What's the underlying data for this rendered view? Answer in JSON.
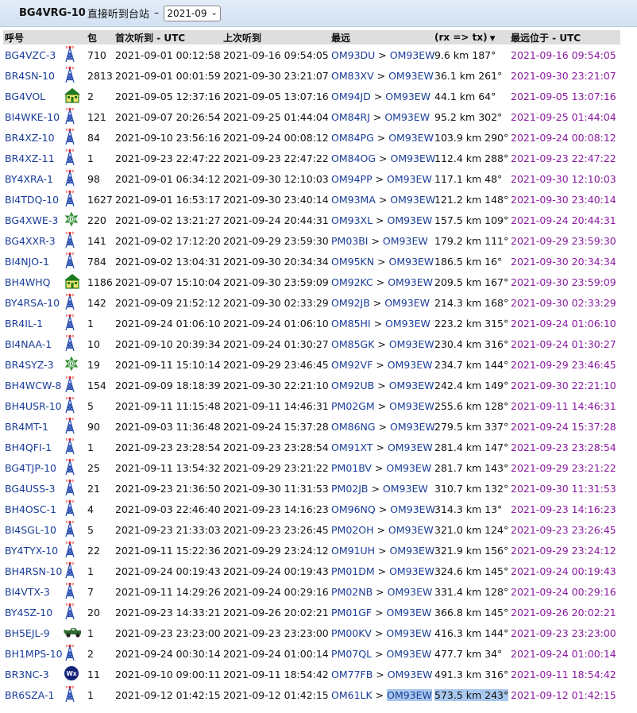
{
  "header": {
    "station": "BG4VRG-10",
    "subtitle": "直接听到台站",
    "separator": "–",
    "period_value": "2021-09"
  },
  "columns": {
    "callsign": "呼号",
    "packets": "包",
    "first_heard": "首次听到 - UTC",
    "last_heard": "上次听到",
    "farthest": "最远",
    "rxtx": "(rx => tx)",
    "farthest_at": "最远位于 - UTC"
  },
  "rows": [
    {
      "call": "BG4VZC-3",
      "icon": "tower-icon",
      "packets": "710",
      "first": "2021-09-01 00:12:58",
      "last": "2021-09-16 09:54:05",
      "from": "OM93DU",
      "to": "OM93EW",
      "dist": "9.6 km 187°",
      "at": "2021-09-16 09:54:05"
    },
    {
      "call": "BR4SN-10",
      "icon": "tower-icon",
      "packets": "2813",
      "first": "2021-09-01 00:01:59",
      "last": "2021-09-30 23:21:07",
      "from": "OM83XV",
      "to": "OM93EW",
      "dist": "36.1 km 261°",
      "at": "2021-09-30 23:21:07"
    },
    {
      "call": "BG4VOL",
      "icon": "house-icon",
      "packets": "2",
      "first": "2021-09-05 12:37:16",
      "last": "2021-09-05 13:07:16",
      "from": "OM94JD",
      "to": "OM93EW",
      "dist": "44.1 km 64°",
      "at": "2021-09-05 13:07:16"
    },
    {
      "call": "BI4WKE-10",
      "icon": "tower-icon",
      "packets": "121",
      "first": "2021-09-07 20:26:54",
      "last": "2021-09-25 01:44:04",
      "from": "OM84RJ",
      "to": "OM93EW",
      "dist": "95.2 km 302°",
      "at": "2021-09-25 01:44:04"
    },
    {
      "call": "BR4XZ-10",
      "icon": "tower-icon",
      "packets": "84",
      "first": "2021-09-10 23:56:16",
      "last": "2021-09-24 00:08:12",
      "from": "OM84PG",
      "to": "OM93EW",
      "dist": "103.9 km 290°",
      "at": "2021-09-24 00:08:12"
    },
    {
      "call": "BR4XZ-11",
      "icon": "tower-icon",
      "packets": "1",
      "first": "2021-09-23 22:47:22",
      "last": "2021-09-23 22:47:22",
      "from": "OM84OG",
      "to": "OM93EW",
      "dist": "112.4 km 288°",
      "at": "2021-09-23 22:47:22"
    },
    {
      "call": "BY4XRA-1",
      "icon": "tower-icon",
      "packets": "98",
      "first": "2021-09-01 06:34:12",
      "last": "2021-09-30 12:10:03",
      "from": "OM94PP",
      "to": "OM93EW",
      "dist": "117.1 km 48°",
      "at": "2021-09-30 12:10:03"
    },
    {
      "call": "BI4TDQ-10",
      "icon": "tower-icon",
      "packets": "1627",
      "first": "2021-09-01 16:53:17",
      "last": "2021-09-30 23:40:14",
      "from": "OM93MA",
      "to": "OM93EW",
      "dist": "121.2 km 148°",
      "at": "2021-09-30 23:40:14"
    },
    {
      "call": "BG4XWE-3",
      "icon": "digi-star-icon",
      "packets": "220",
      "first": "2021-09-02 13:21:27",
      "last": "2021-09-24 20:44:31",
      "from": "OM93XL",
      "to": "OM93EW",
      "dist": "157.5 km 109°",
      "at": "2021-09-24 20:44:31"
    },
    {
      "call": "BG4XXR-3",
      "icon": "tower-icon",
      "packets": "141",
      "first": "2021-09-02 17:12:20",
      "last": "2021-09-29 23:59:30",
      "from": "PM03BI",
      "to": "OM93EW",
      "dist": "179.2 km 111°",
      "at": "2021-09-29 23:59:30"
    },
    {
      "call": "BI4NJO-1",
      "icon": "tower-icon",
      "packets": "784",
      "first": "2021-09-02 13:04:31",
      "last": "2021-09-30 20:34:34",
      "from": "OM95KN",
      "to": "OM93EW",
      "dist": "186.5 km 16°",
      "at": "2021-09-30 20:34:34"
    },
    {
      "call": "BH4WHQ",
      "icon": "house-icon",
      "packets": "1186",
      "first": "2021-09-07 15:10:04",
      "last": "2021-09-30 23:59:09",
      "from": "OM92KC",
      "to": "OM93EW",
      "dist": "209.5 km 167°",
      "at": "2021-09-30 23:59:09"
    },
    {
      "call": "BY4RSA-10",
      "icon": "tower-icon",
      "packets": "142",
      "first": "2021-09-09 21:52:12",
      "last": "2021-09-30 02:33:29",
      "from": "OM92JB",
      "to": "OM93EW",
      "dist": "214.3 km 168°",
      "at": "2021-09-30 02:33:29"
    },
    {
      "call": "BR4IL-1",
      "icon": "tower-icon",
      "packets": "1",
      "first": "2021-09-24 01:06:10",
      "last": "2021-09-24 01:06:10",
      "from": "OM85HI",
      "to": "OM93EW",
      "dist": "223.2 km 315°",
      "at": "2021-09-24 01:06:10"
    },
    {
      "call": "BI4NAA-1",
      "icon": "tower-icon",
      "packets": "10",
      "first": "2021-09-10 20:39:34",
      "last": "2021-09-24 01:30:27",
      "from": "OM85GK",
      "to": "OM93EW",
      "dist": "230.4 km 316°",
      "at": "2021-09-24 01:30:27"
    },
    {
      "call": "BR4SYZ-3",
      "icon": "digi-star-icon",
      "packets": "19",
      "first": "2021-09-11 15:10:14",
      "last": "2021-09-29 23:46:45",
      "from": "OM92VF",
      "to": "OM93EW",
      "dist": "234.7 km 144°",
      "at": "2021-09-29 23:46:45"
    },
    {
      "call": "BH4WCW-8",
      "icon": "tower-icon",
      "packets": "154",
      "first": "2021-09-09 18:18:39",
      "last": "2021-09-30 22:21:10",
      "from": "OM92UB",
      "to": "OM93EW",
      "dist": "242.4 km 149°",
      "at": "2021-09-30 22:21:10"
    },
    {
      "call": "BH4USR-10",
      "icon": "tower-icon",
      "packets": "5",
      "first": "2021-09-11 11:15:48",
      "last": "2021-09-11 14:46:31",
      "from": "PM02GM",
      "to": "OM93EW",
      "dist": "255.6 km 128°",
      "at": "2021-09-11 14:46:31"
    },
    {
      "call": "BR4MT-1",
      "icon": "tower-icon",
      "packets": "90",
      "first": "2021-09-03 11:36:48",
      "last": "2021-09-24 15:37:28",
      "from": "OM86NG",
      "to": "OM93EW",
      "dist": "279.5 km 337°",
      "at": "2021-09-24 15:37:28"
    },
    {
      "call": "BH4QFI-1",
      "icon": "tower-icon",
      "packets": "1",
      "first": "2021-09-23 23:28:54",
      "last": "2021-09-23 23:28:54",
      "from": "OM91XT",
      "to": "OM93EW",
      "dist": "281.4 km 147°",
      "at": "2021-09-23 23:28:54"
    },
    {
      "call": "BG4TJP-10",
      "icon": "tower-icon",
      "packets": "25",
      "first": "2021-09-11 13:54:32",
      "last": "2021-09-29 23:21:22",
      "from": "PM01BV",
      "to": "OM93EW",
      "dist": "281.7 km 143°",
      "at": "2021-09-29 23:21:22"
    },
    {
      "call": "BG4USS-3",
      "icon": "tower-icon",
      "packets": "21",
      "first": "2021-09-23 21:36:50",
      "last": "2021-09-30 11:31:53",
      "from": "PM02JB",
      "to": "OM93EW",
      "dist": "310.7 km 132°",
      "at": "2021-09-30 11:31:53"
    },
    {
      "call": "BH4OSC-1",
      "icon": "tower-icon",
      "packets": "4",
      "first": "2021-09-03 22:46:40",
      "last": "2021-09-23 14:16:23",
      "from": "OM96NQ",
      "to": "OM93EW",
      "dist": "314.3 km 13°",
      "at": "2021-09-23 14:16:23"
    },
    {
      "call": "BI4SGL-10",
      "icon": "tower-icon",
      "packets": "5",
      "first": "2021-09-23 21:33:03",
      "last": "2021-09-23 23:26:45",
      "from": "PM02OH",
      "to": "OM93EW",
      "dist": "321.0 km 124°",
      "at": "2021-09-23 23:26:45"
    },
    {
      "call": "BY4TYX-10",
      "icon": "tower-icon",
      "packets": "22",
      "first": "2021-09-11 15:22:36",
      "last": "2021-09-29 23:24:12",
      "from": "OM91UH",
      "to": "OM93EW",
      "dist": "321.9 km 156°",
      "at": "2021-09-29 23:24:12"
    },
    {
      "call": "BH4RSN-10",
      "icon": "tower-icon",
      "packets": "1",
      "first": "2021-09-24 00:19:43",
      "last": "2021-09-24 00:19:43",
      "from": "PM01DM",
      "to": "OM93EW",
      "dist": "324.6 km 145°",
      "at": "2021-09-24 00:19:43"
    },
    {
      "call": "BI4VTX-3",
      "icon": "tower-icon",
      "packets": "7",
      "first": "2021-09-11 14:29:26",
      "last": "2021-09-24 00:29:16",
      "from": "PM02NB",
      "to": "OM93EW",
      "dist": "331.4 km 128°",
      "at": "2021-09-24 00:29:16"
    },
    {
      "call": "BY4SZ-10",
      "icon": "tower-icon",
      "packets": "20",
      "first": "2021-09-23 14:33:21",
      "last": "2021-09-26 20:02:21",
      "from": "PM01GF",
      "to": "OM93EW",
      "dist": "366.8 km 145°",
      "at": "2021-09-26 20:02:21"
    },
    {
      "call": "BH5EJL-9",
      "icon": "jeep-icon",
      "packets": "1",
      "first": "2021-09-23 23:23:00",
      "last": "2021-09-23 23:23:00",
      "from": "PM00KV",
      "to": "OM93EW",
      "dist": "416.3 km 144°",
      "at": "2021-09-23 23:23:00"
    },
    {
      "call": "BH1MPS-10",
      "icon": "tower-icon",
      "packets": "2",
      "first": "2021-09-24 00:30:14",
      "last": "2021-09-24 01:00:14",
      "from": "PM07QL",
      "to": "OM93EW",
      "dist": "477.7 km 34°",
      "at": "2021-09-24 01:00:14"
    },
    {
      "call": "BR3NC-3",
      "icon": "weather-icon",
      "packets": "11",
      "first": "2021-09-10 09:00:11",
      "last": "2021-09-11 18:54:42",
      "from": "OM77FB",
      "to": "OM93EW",
      "dist": "491.3 km 316°",
      "at": "2021-09-11 18:54:42"
    },
    {
      "call": "BR6SZA-1",
      "icon": "tower-icon",
      "packets": "1",
      "first": "2021-09-12 01:42:15",
      "last": "2021-09-12 01:42:15",
      "from": "OM61LK",
      "to": "OM93EW",
      "dist": "573.5 km 243°",
      "at": "2021-09-12 01:42:15",
      "highlight": true
    }
  ],
  "colors": {
    "link": "#1a3d99",
    "purple": "#8a1aa0",
    "header_bg": "#dedede",
    "highlight": "#a9c8ee"
  }
}
